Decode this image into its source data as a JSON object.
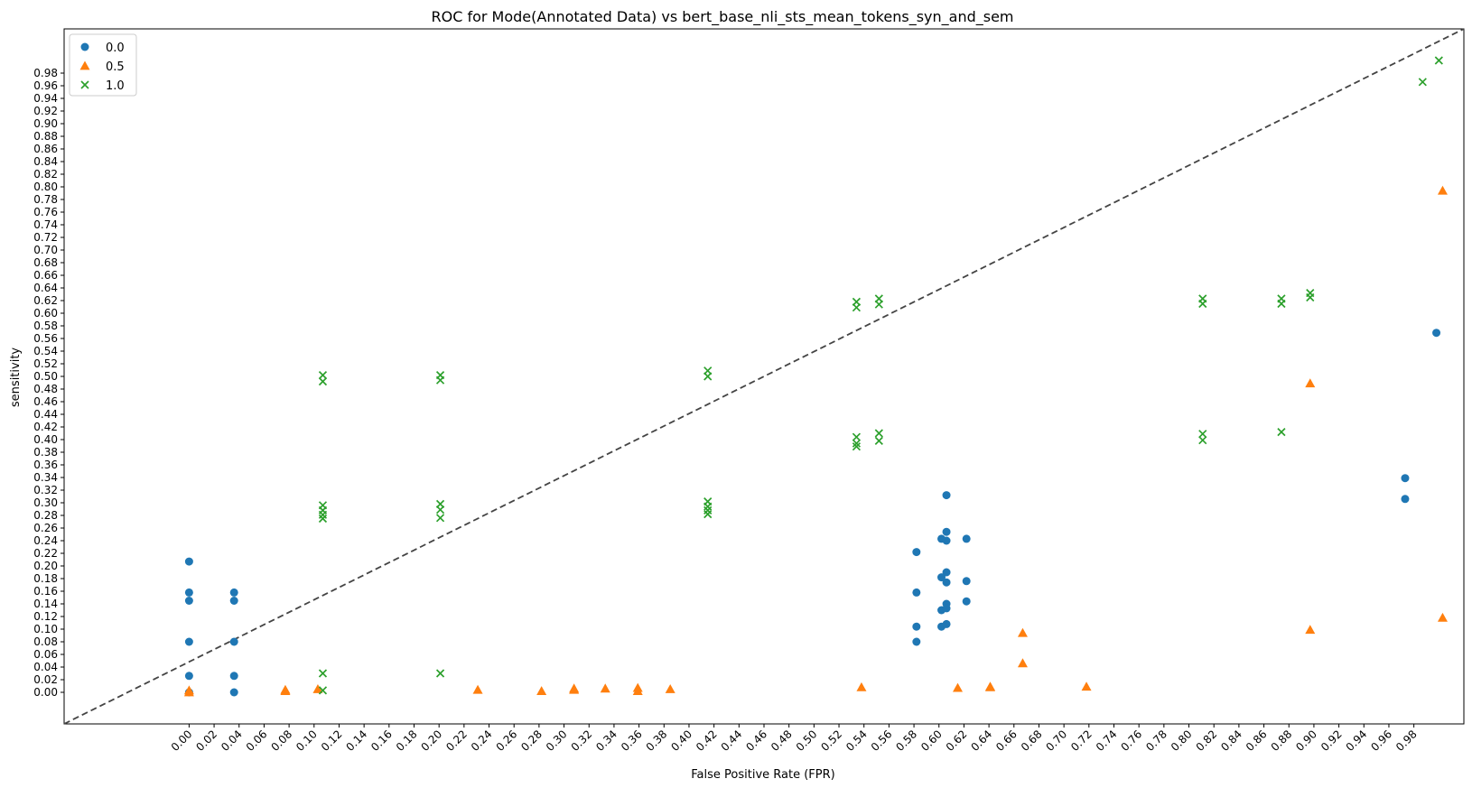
{
  "chart_data": {
    "type": "scatter",
    "title": "ROC for Mode(Annotated Data) vs bert_base_nli_sts_mean_tokens_syn_and_sem",
    "xlabel": "False Positive Rate (FPR)",
    "ylabel": "sensitivity",
    "xlim": [
      -0.1,
      1.02
    ],
    "ylim": [
      -0.05,
      1.05
    ],
    "x_ticks": [
      "0.00",
      "0.02",
      "0.04",
      "0.06",
      "0.08",
      "0.10",
      "0.12",
      "0.14",
      "0.16",
      "0.18",
      "0.20",
      "0.22",
      "0.24",
      "0.26",
      "0.28",
      "0.30",
      "0.32",
      "0.34",
      "0.36",
      "0.38",
      "0.40",
      "0.42",
      "0.44",
      "0.46",
      "0.48",
      "0.50",
      "0.52",
      "0.54",
      "0.56",
      "0.58",
      "0.60",
      "0.62",
      "0.64",
      "0.66",
      "0.68",
      "0.70",
      "0.72",
      "0.74",
      "0.76",
      "0.78",
      "0.80",
      "0.82",
      "0.84",
      "0.86",
      "0.88",
      "0.90",
      "0.92",
      "0.94",
      "0.96",
      "0.98"
    ],
    "y_ticks": [
      "0.00",
      "0.02",
      "0.04",
      "0.06",
      "0.08",
      "0.10",
      "0.12",
      "0.14",
      "0.16",
      "0.18",
      "0.20",
      "0.22",
      "0.24",
      "0.26",
      "0.28",
      "0.30",
      "0.32",
      "0.34",
      "0.36",
      "0.38",
      "0.40",
      "0.42",
      "0.44",
      "0.46",
      "0.48",
      "0.50",
      "0.52",
      "0.54",
      "0.56",
      "0.58",
      "0.60",
      "0.62",
      "0.64",
      "0.66",
      "0.68",
      "0.70",
      "0.72",
      "0.74",
      "0.76",
      "0.78",
      "0.80",
      "0.82",
      "0.84",
      "0.86",
      "0.88",
      "0.90",
      "0.92",
      "0.94",
      "0.96",
      "0.98"
    ],
    "diagonal": {
      "style": "dashed",
      "color": "#444444",
      "from": [
        -0.1,
        -0.05
      ],
      "to": [
        1.02,
        1.05
      ]
    },
    "legend_position": "top-left",
    "series": [
      {
        "name": "0.0",
        "marker": "circle",
        "color": "#1f77b4",
        "points": [
          [
            0.0,
            0.207
          ],
          [
            0.0,
            0.158
          ],
          [
            0.0,
            0.145
          ],
          [
            0.0,
            0.08
          ],
          [
            0.0,
            0.026
          ],
          [
            0.0,
            0.0
          ],
          [
            0.036,
            0.158
          ],
          [
            0.036,
            0.145
          ],
          [
            0.036,
            0.08
          ],
          [
            0.036,
            0.026
          ],
          [
            0.036,
            0.0
          ],
          [
            0.582,
            0.222
          ],
          [
            0.582,
            0.158
          ],
          [
            0.582,
            0.104
          ],
          [
            0.582,
            0.08
          ],
          [
            0.602,
            0.243
          ],
          [
            0.602,
            0.182
          ],
          [
            0.602,
            0.13
          ],
          [
            0.602,
            0.104
          ],
          [
            0.606,
            0.312
          ],
          [
            0.606,
            0.254
          ],
          [
            0.606,
            0.24
          ],
          [
            0.606,
            0.19
          ],
          [
            0.606,
            0.174
          ],
          [
            0.606,
            0.14
          ],
          [
            0.606,
            0.133
          ],
          [
            0.606,
            0.108
          ],
          [
            0.622,
            0.243
          ],
          [
            0.622,
            0.176
          ],
          [
            0.622,
            0.144
          ],
          [
            0.973,
            0.339
          ],
          [
            0.973,
            0.306
          ],
          [
            0.998,
            0.569
          ]
        ]
      },
      {
        "name": "0.5",
        "marker": "triangle",
        "color": "#ff7f0e",
        "points": [
          [
            0.0,
            0.0
          ],
          [
            0.0,
            0.003
          ],
          [
            0.077,
            0.002
          ],
          [
            0.077,
            0.004
          ],
          [
            0.103,
            0.005
          ],
          [
            0.231,
            0.004
          ],
          [
            0.282,
            0.002
          ],
          [
            0.308,
            0.006
          ],
          [
            0.308,
            0.004
          ],
          [
            0.333,
            0.006
          ],
          [
            0.359,
            0.002
          ],
          [
            0.359,
            0.007
          ],
          [
            0.385,
            0.005
          ],
          [
            0.538,
            0.008
          ],
          [
            0.615,
            0.007
          ],
          [
            0.641,
            0.009
          ],
          [
            0.641,
            0.008
          ],
          [
            0.667,
            0.094
          ],
          [
            0.667,
            0.046
          ],
          [
            0.718,
            0.009
          ],
          [
            0.897,
            0.489
          ],
          [
            0.897,
            0.099
          ],
          [
            1.003,
            0.794
          ],
          [
            1.003,
            0.118
          ]
        ]
      },
      {
        "name": "1.0",
        "marker": "x",
        "color": "#2ca02c",
        "points": [
          [
            0.107,
            0.502
          ],
          [
            0.107,
            0.492
          ],
          [
            0.107,
            0.296
          ],
          [
            0.107,
            0.288
          ],
          [
            0.107,
            0.281
          ],
          [
            0.107,
            0.275
          ],
          [
            0.107,
            0.03
          ],
          [
            0.107,
            0.003
          ],
          [
            0.201,
            0.502
          ],
          [
            0.201,
            0.494
          ],
          [
            0.201,
            0.298
          ],
          [
            0.201,
            0.289
          ],
          [
            0.201,
            0.276
          ],
          [
            0.201,
            0.03
          ],
          [
            0.415,
            0.509
          ],
          [
            0.415,
            0.5
          ],
          [
            0.415,
            0.302
          ],
          [
            0.415,
            0.294
          ],
          [
            0.415,
            0.288
          ],
          [
            0.415,
            0.282
          ],
          [
            0.534,
            0.618
          ],
          [
            0.534,
            0.609
          ],
          [
            0.534,
            0.404
          ],
          [
            0.534,
            0.394
          ],
          [
            0.534,
            0.389
          ],
          [
            0.552,
            0.623
          ],
          [
            0.552,
            0.614
          ],
          [
            0.552,
            0.41
          ],
          [
            0.552,
            0.398
          ],
          [
            0.811,
            0.623
          ],
          [
            0.811,
            0.615
          ],
          [
            0.811,
            0.409
          ],
          [
            0.811,
            0.399
          ],
          [
            0.874,
            0.623
          ],
          [
            0.874,
            0.615
          ],
          [
            0.874,
            0.412
          ],
          [
            0.897,
            0.632
          ],
          [
            0.897,
            0.625
          ],
          [
            0.987,
            0.966
          ],
          [
            1.0,
            1.0
          ]
        ]
      }
    ]
  }
}
